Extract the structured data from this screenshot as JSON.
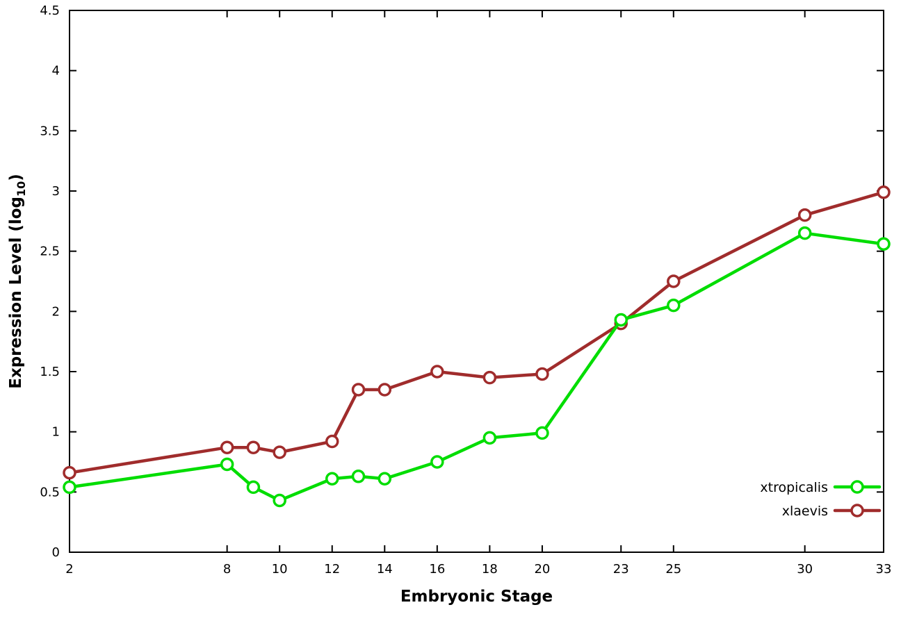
{
  "chart_data": {
    "type": "line",
    "title": "",
    "xlabel": "Embryonic Stage",
    "ylabel_prefix": "Expression Level (log",
    "ylabel_sub": "10",
    "ylabel_suffix": ")",
    "x": [
      2,
      8,
      9,
      10,
      12,
      13,
      14,
      16,
      18,
      20,
      23,
      25,
      30,
      33
    ],
    "xlim": [
      2,
      33
    ],
    "ylim": [
      0,
      4.5
    ],
    "xticks": [
      2,
      8,
      10,
      12,
      14,
      16,
      18,
      20,
      23,
      25,
      30,
      33
    ],
    "xtick_labels": [
      "2",
      "8",
      "10",
      "12",
      "14",
      "16",
      "18",
      "20",
      "23",
      "25",
      "30",
      "33"
    ],
    "yticks": [
      0,
      0.5,
      1,
      1.5,
      2,
      2.5,
      3,
      3.5,
      4,
      4.5
    ],
    "ytick_labels": [
      "0",
      "0.5",
      "1",
      "1.5",
      "2",
      "2.5",
      "3",
      "3.5",
      "4",
      "4.5"
    ],
    "grid": false,
    "legend_position": "bottom-right",
    "axis_color": "#000000",
    "series": [
      {
        "name": "xtropicalis",
        "color": "#00dd00",
        "values": [
          0.54,
          0.73,
          0.54,
          0.43,
          0.61,
          0.63,
          0.61,
          0.75,
          0.95,
          0.99,
          1.93,
          2.05,
          2.65,
          2.56
        ]
      },
      {
        "name": "xlaevis",
        "color": "#a02c2c",
        "values": [
          0.66,
          0.87,
          0.87,
          0.83,
          0.92,
          1.35,
          1.35,
          1.5,
          1.45,
          1.48,
          1.9,
          2.25,
          2.8,
          2.99
        ]
      }
    ]
  }
}
